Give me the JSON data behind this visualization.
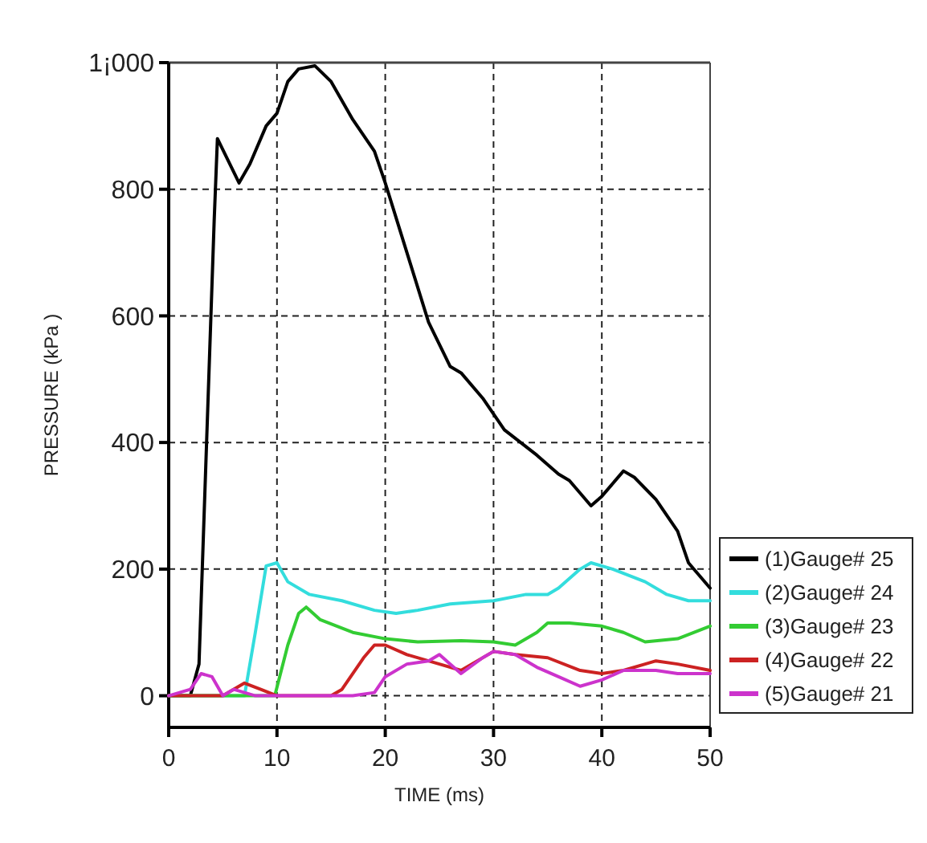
{
  "chart_data": {
    "type": "line",
    "xlabel": "TIME (ms)",
    "ylabel": "PRESSURE (kPa )",
    "xlim": [
      0,
      50
    ],
    "ylim": [
      -50,
      1000
    ],
    "xticks": [
      0,
      10,
      20,
      30,
      40,
      50
    ],
    "yticks": [
      0,
      200,
      400,
      600,
      800,
      {
        "value": 1000,
        "label": "1¡000"
      }
    ],
    "grid": true,
    "legend": "right",
    "line_style": "solid",
    "marker": "none",
    "series": [
      {
        "name": "(1)Gauge# 25",
        "color": "#000000",
        "x": [
          0,
          2,
          2.8,
          3.5,
          4.2,
          4.5,
          6.5,
          7.5,
          9,
          10,
          11,
          12,
          13.5,
          15,
          17,
          19,
          20,
          22,
          24,
          26,
          27,
          29,
          31,
          34,
          36,
          37,
          39,
          40,
          42,
          43,
          45,
          47,
          48,
          50
        ],
        "values": [
          0,
          0,
          50,
          400,
          750,
          880,
          810,
          840,
          900,
          920,
          970,
          990,
          995,
          970,
          910,
          860,
          810,
          700,
          590,
          520,
          510,
          470,
          420,
          380,
          350,
          340,
          300,
          315,
          355,
          345,
          310,
          260,
          210,
          170
        ]
      },
      {
        "name": "(2)Gauge# 24",
        "color": "#33dddd",
        "x": [
          0,
          7,
          8,
          9,
          10,
          11,
          13,
          16,
          19,
          21,
          23,
          26,
          30,
          33,
          35,
          36,
          38,
          39,
          41,
          44,
          46,
          48,
          50
        ],
        "values": [
          0,
          0,
          100,
          205,
          210,
          180,
          160,
          150,
          135,
          130,
          135,
          145,
          150,
          160,
          160,
          170,
          200,
          210,
          200,
          180,
          160,
          150,
          150
        ]
      },
      {
        "name": "(3)Gauge# 23",
        "color": "#33cc33",
        "x": [
          0,
          9.8,
          11,
          12,
          12.7,
          14,
          17,
          20,
          23,
          27,
          30,
          32,
          34,
          35,
          37,
          40,
          42,
          44,
          47,
          50
        ],
        "values": [
          0,
          0,
          80,
          130,
          140,
          120,
          100,
          90,
          85,
          87,
          85,
          80,
          100,
          115,
          115,
          110,
          100,
          85,
          90,
          110
        ]
      },
      {
        "name": "(4)Gauge# 22",
        "color": "#cc2222",
        "x": [
          0,
          5,
          7,
          8.5,
          10,
          15,
          16,
          18,
          19,
          20,
          22,
          25,
          27,
          30,
          32,
          35,
          38,
          40,
          42,
          44,
          45,
          47,
          50
        ],
        "values": [
          0,
          0,
          20,
          10,
          0,
          0,
          10,
          60,
          80,
          80,
          65,
          50,
          40,
          70,
          65,
          60,
          40,
          35,
          40,
          50,
          55,
          50,
          40
        ]
      },
      {
        "name": "(5)Gauge# 21",
        "color": "#cc33cc",
        "x": [
          0,
          2,
          3,
          4,
          5,
          6,
          8,
          17,
          19,
          20,
          22,
          24,
          25,
          26,
          27,
          29,
          30,
          32,
          34,
          36,
          38,
          40,
          42,
          45,
          47,
          50
        ],
        "values": [
          0,
          10,
          35,
          30,
          0,
          10,
          0,
          0,
          5,
          30,
          50,
          55,
          65,
          50,
          35,
          60,
          70,
          65,
          45,
          30,
          15,
          25,
          40,
          40,
          35,
          35
        ]
      }
    ]
  }
}
